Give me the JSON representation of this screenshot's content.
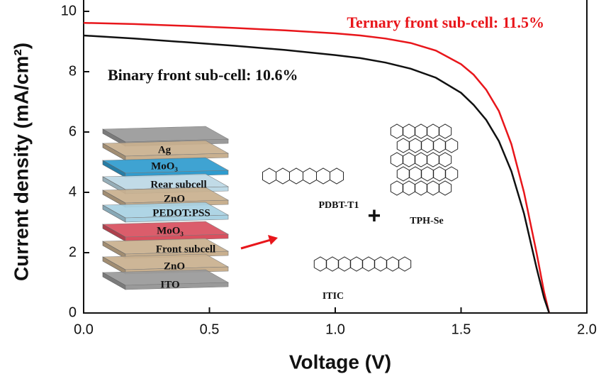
{
  "chart_data": {
    "type": "line",
    "xlabel": "Voltage (V)",
    "ylabel": "Current density (mA/cm²)",
    "x": [
      0,
      0.2,
      0.4,
      0.6,
      0.8,
      1.0,
      1.1,
      1.2,
      1.3,
      1.4,
      1.5,
      1.55,
      1.6,
      1.65,
      1.7,
      1.75,
      1.8,
      1.83,
      1.85
    ],
    "series": [
      {
        "name": "Ternary front sub-cell: 11.5%",
        "color": "#e8161b",
        "values": [
          9.62,
          9.58,
          9.52,
          9.45,
          9.37,
          9.27,
          9.2,
          9.1,
          8.95,
          8.7,
          8.25,
          7.9,
          7.4,
          6.7,
          5.6,
          4.0,
          2.0,
          0.7,
          0
        ]
      },
      {
        "name": "Binary front sub-cell: 10.6%",
        "color": "#111111",
        "values": [
          9.2,
          9.1,
          8.98,
          8.86,
          8.72,
          8.55,
          8.45,
          8.3,
          8.1,
          7.8,
          7.3,
          6.9,
          6.4,
          5.7,
          4.7,
          3.3,
          1.5,
          0.5,
          0
        ]
      }
    ],
    "xlim": [
      0,
      2.0
    ],
    "xticks": [
      {
        "value": 0,
        "label": "0.0"
      },
      0.5,
      {
        "value": 1.0,
        "label": "1.0"
      },
      1.5,
      {
        "value": 2.0,
        "label": "2.0"
      }
    ],
    "ylim": [
      0,
      10
    ],
    "yticks": [
      0,
      2,
      4,
      6,
      8,
      10
    ],
    "inset": {
      "layers": [
        "Ag",
        "MoO₃",
        "Rear subcell",
        "ZnO",
        "PEDOT:PSS",
        "MoO₃",
        "Front subcell",
        "ZnO",
        "ITO"
      ],
      "molecules": [
        "PDBT-T1",
        "TPH-Se",
        "ITIC"
      ],
      "plus": "+"
    }
  }
}
